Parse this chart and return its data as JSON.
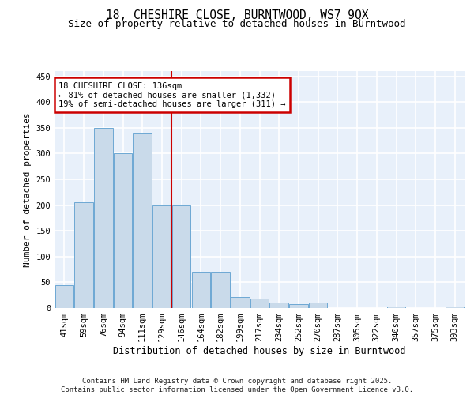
{
  "title": "18, CHESHIRE CLOSE, BURNTWOOD, WS7 9QX",
  "subtitle": "Size of property relative to detached houses in Burntwood",
  "xlabel": "Distribution of detached houses by size in Burntwood",
  "ylabel": "Number of detached properties",
  "categories": [
    "41sqm",
    "59sqm",
    "76sqm",
    "94sqm",
    "111sqm",
    "129sqm",
    "146sqm",
    "164sqm",
    "182sqm",
    "199sqm",
    "217sqm",
    "234sqm",
    "252sqm",
    "270sqm",
    "287sqm",
    "305sqm",
    "322sqm",
    "340sqm",
    "357sqm",
    "375sqm",
    "393sqm"
  ],
  "values": [
    45,
    205,
    350,
    300,
    340,
    200,
    200,
    70,
    70,
    22,
    18,
    10,
    8,
    10,
    0,
    0,
    0,
    3,
    0,
    0,
    3
  ],
  "bar_color": "#c9daea",
  "bar_edge_color": "#6da8d4",
  "bg_color": "#e8f0fa",
  "grid_color": "#ffffff",
  "vline_x": 5.5,
  "vline_color": "#cc0000",
  "annotation_text": "18 CHESHIRE CLOSE: 136sqm\n← 81% of detached houses are smaller (1,332)\n19% of semi-detached houses are larger (311) →",
  "annotation_box_color": "#cc0000",
  "footer_text": "Contains HM Land Registry data © Crown copyright and database right 2025.\nContains public sector information licensed under the Open Government Licence v3.0.",
  "ylim": [
    0,
    460
  ],
  "yticks": [
    0,
    50,
    100,
    150,
    200,
    250,
    300,
    350,
    400,
    450
  ],
  "title_fontsize": 10.5,
  "subtitle_fontsize": 9,
  "xlabel_fontsize": 8.5,
  "ylabel_fontsize": 8,
  "tick_fontsize": 7.5,
  "footer_fontsize": 6.5,
  "annotation_fontsize": 7.5
}
